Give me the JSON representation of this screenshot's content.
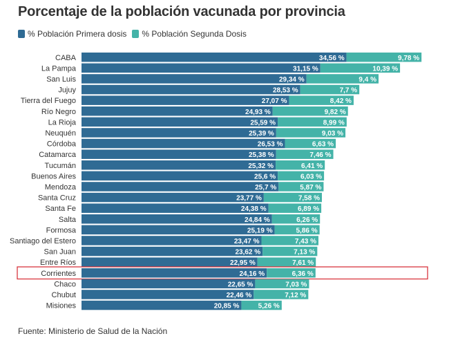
{
  "title": "Porcentaje de la población vacunada por provincia",
  "source": "Fuente: Ministerio de Salud de la Nación",
  "colors": {
    "first_dose": "#2f6b94",
    "second_dose": "#44b3a8",
    "highlight": "#d9363e",
    "label_text": "#ffffff"
  },
  "highlight_category": "Corrientes",
  "chart_data": {
    "type": "bar",
    "orientation": "horizontal",
    "stacked": true,
    "title": "Porcentaje de la población vacunada por provincia",
    "legend": "top-left",
    "value_suffix": " %",
    "categories": [
      "CABA",
      "La Pampa",
      "San Luis",
      "Jujuy",
      "Tierra del Fuego",
      "Río Negro",
      "La Rioja",
      "Neuquén",
      "Córdoba",
      "Catamarca",
      "Tucumán",
      "Buenos Aires",
      "Mendoza",
      "Santa Cruz",
      "Santa Fe",
      "Salta",
      "Formosa",
      "Santiago del Estero",
      "San Juan",
      "Entre Ríos",
      "Corrientes",
      "Chaco",
      "Chubut",
      "Misiones"
    ],
    "series": [
      {
        "name": "% Población Primera dosis",
        "values": [
          34.56,
          31.15,
          29.34,
          28.53,
          27.07,
          24.93,
          25.59,
          25.39,
          26.53,
          25.38,
          25.32,
          25.6,
          25.7,
          23.77,
          24.38,
          24.84,
          25.19,
          23.47,
          23.62,
          22.95,
          24.16,
          22.65,
          22.46,
          20.85
        ],
        "labels": [
          "34,56",
          "31,15",
          "29,34",
          "28,53",
          "27,07",
          "24,93",
          "25,59",
          "25,39",
          "26,53",
          "25,38",
          "25,32",
          "25,6",
          "25,7",
          "23,77",
          "24,38",
          "24,84",
          "25,19",
          "23,47",
          "23,62",
          "22,95",
          "24,16",
          "22,65",
          "22,46",
          "20,85"
        ]
      },
      {
        "name": "% Población Segunda Dosis",
        "values": [
          9.78,
          10.39,
          9.4,
          7.7,
          8.42,
          9.82,
          8.99,
          9.03,
          6.63,
          7.46,
          6.41,
          6.03,
          5.87,
          7.58,
          6.89,
          6.26,
          5.86,
          7.43,
          7.13,
          7.61,
          6.36,
          7.03,
          7.12,
          5.26
        ],
        "labels": [
          "9,78",
          "10,39",
          "9,4",
          "7,7",
          "8,42",
          "9,82",
          "8,99",
          "9,03",
          "6,63",
          "7,46",
          "6,41",
          "6,03",
          "5,87",
          "7,58",
          "6,89",
          "6,26",
          "5,86",
          "7,43",
          "7,13",
          "7,61",
          "6,36",
          "7,03",
          "7,12",
          "5,26"
        ]
      }
    ]
  }
}
